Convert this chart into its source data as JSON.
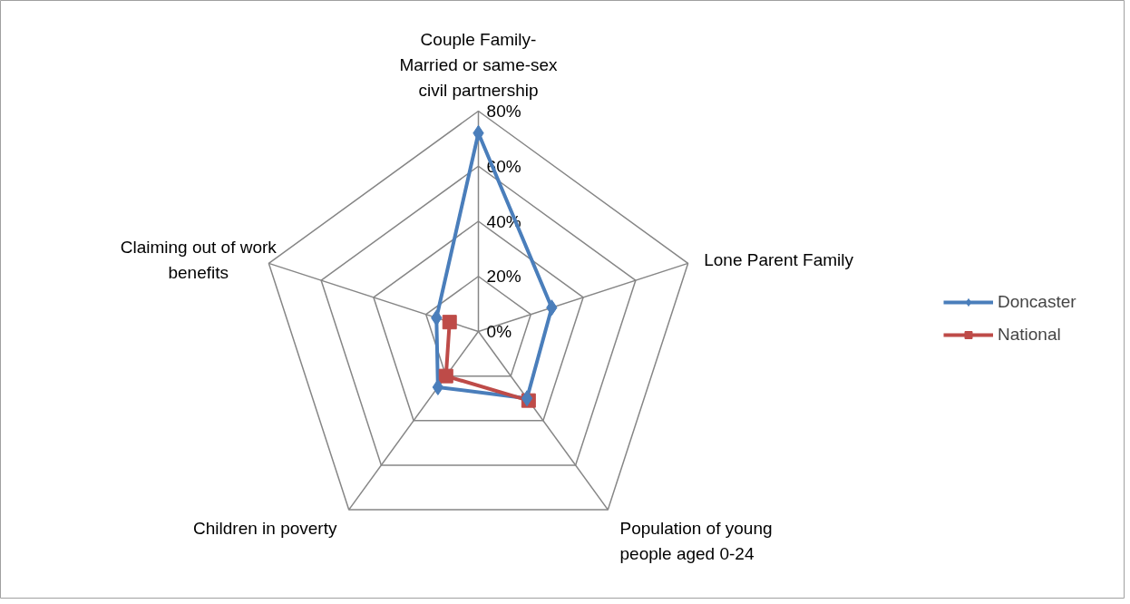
{
  "chart_data": {
    "type": "radar",
    "categories": [
      "Couple Family-\nMarried or same-sex\ncivil partnership",
      "Lone Parent  Family",
      "Population of young\npeople aged 0-24",
      "Children in poverty",
      "Claiming out of work\nbenefits"
    ],
    "series": [
      {
        "name": "Doncaster",
        "color": "#4a7ebb",
        "marker": "diamond",
        "values": [
          72,
          28,
          30,
          25,
          16
        ]
      },
      {
        "name": "National",
        "color": "#be4b48",
        "marker": "square",
        "values": [
          null,
          null,
          31,
          20,
          11
        ]
      }
    ],
    "ylim": [
      0,
      80
    ],
    "yticks": [
      {
        "value": 0,
        "label": "0%"
      },
      {
        "value": 20,
        "label": "20%"
      },
      {
        "value": 40,
        "label": "40%"
      },
      {
        "value": 60,
        "label": "60%"
      },
      {
        "value": 80,
        "label": "80%"
      }
    ],
    "grid": true,
    "legend": "right"
  }
}
